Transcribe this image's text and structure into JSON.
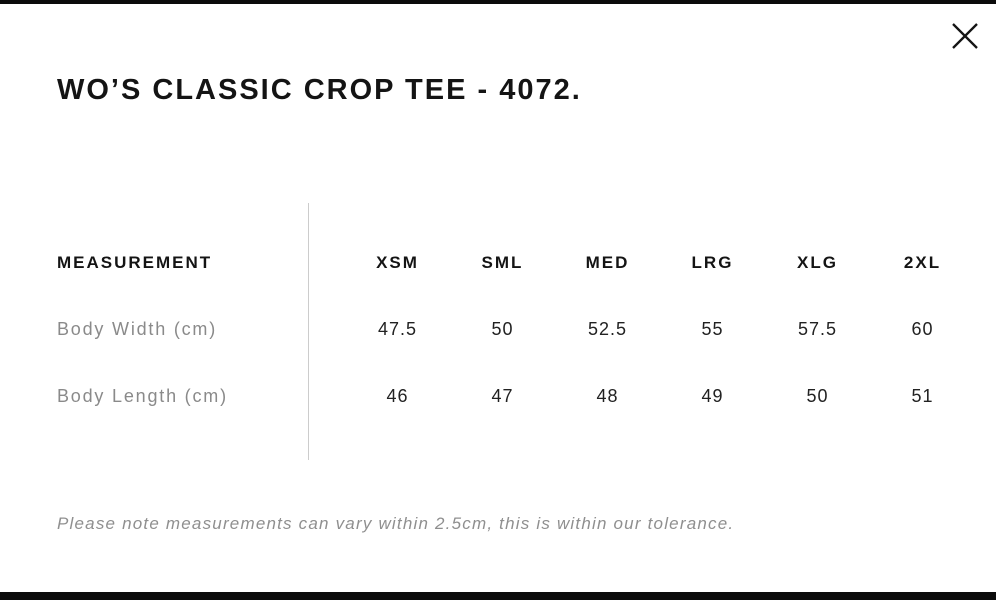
{
  "modal": {
    "title": "WO’S CLASSIC CROP TEE - 4072.",
    "close_icon": "close-icon"
  },
  "size_chart": {
    "measurement_header": "MEASUREMENT",
    "sizes": [
      "XSM",
      "SML",
      "MED",
      "LRG",
      "XLG",
      "2XL"
    ],
    "rows": [
      {
        "label": "Body Width (cm)",
        "values": [
          "47.5",
          "50",
          "52.5",
          "55",
          "57.5",
          "60"
        ]
      },
      {
        "label": "Body Length (cm)",
        "values": [
          "46",
          "47",
          "48",
          "49",
          "50",
          "51"
        ]
      }
    ]
  },
  "footnote": "Please note measurements can vary within 2.5cm, this is within our tolerance.",
  "colors": {
    "border_bar": "#0b0b0b",
    "title_text": "#141414",
    "header_text": "#141414",
    "label_text": "#8a8a8a",
    "value_text": "#222222",
    "divider": "#cccccc",
    "background": "#ffffff"
  }
}
